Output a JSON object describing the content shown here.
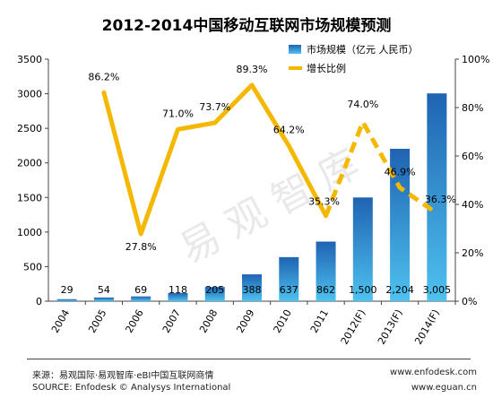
{
  "chart_data": {
    "type": "bar+line",
    "title": "2012-2014中国移动互联网市场规模预测",
    "categories": [
      "2004",
      "2005",
      "2006",
      "2007",
      "2008",
      "2009",
      "2010",
      "2011",
      "2012(F)",
      "2013(F)",
      "2014(F)"
    ],
    "series": [
      {
        "name": "市场规模（亿元 人民币）",
        "type": "bar",
        "axis": "left",
        "values": [
          29,
          54,
          69,
          118,
          205,
          388,
          637,
          862,
          1500,
          2204,
          3005
        ],
        "labels": [
          "29",
          "54",
          "69",
          "118",
          "205",
          "388",
          "637",
          "862",
          "1,500",
          "2,204",
          "3,005"
        ]
      },
      {
        "name": "增长比例",
        "type": "line",
        "axis": "right",
        "values": [
          null,
          86.2,
          27.8,
          71.0,
          73.7,
          89.3,
          64.2,
          35.3,
          74.0,
          46.9,
          36.3
        ],
        "labels": [
          "",
          "86.2%",
          "27.8%",
          "71.0%",
          "73.7%",
          "89.3%",
          "64.2%",
          "35.3%",
          "74.0%",
          "46.9%",
          "36.3%"
        ],
        "dashed_from_index": 7
      }
    ],
    "y_left": {
      "lim": [
        0,
        3500
      ],
      "ticks": [
        "0",
        "500",
        "1000",
        "1500",
        "2000",
        "2500",
        "3000",
        "3500"
      ]
    },
    "y_right": {
      "lim": [
        0,
        100
      ],
      "ticks": [
        "0%",
        "20%",
        "40%",
        "60%",
        "80%",
        "100%"
      ]
    },
    "grid": false,
    "legend": "top-right",
    "watermark": "易观智库",
    "colors": {
      "bar_top": "#1f63b2",
      "bar_bottom": "#4ec2ef",
      "line": "#f5b800",
      "title": "#000000"
    }
  },
  "footer": {
    "source_cn": "来源：易观国际·易观智库·eBI中国互联网商情",
    "source_en": "SOURCE: Enfodesk © Analysys International",
    "site1": "www.enfodesk.com",
    "site2": "www.eguan.cn"
  }
}
